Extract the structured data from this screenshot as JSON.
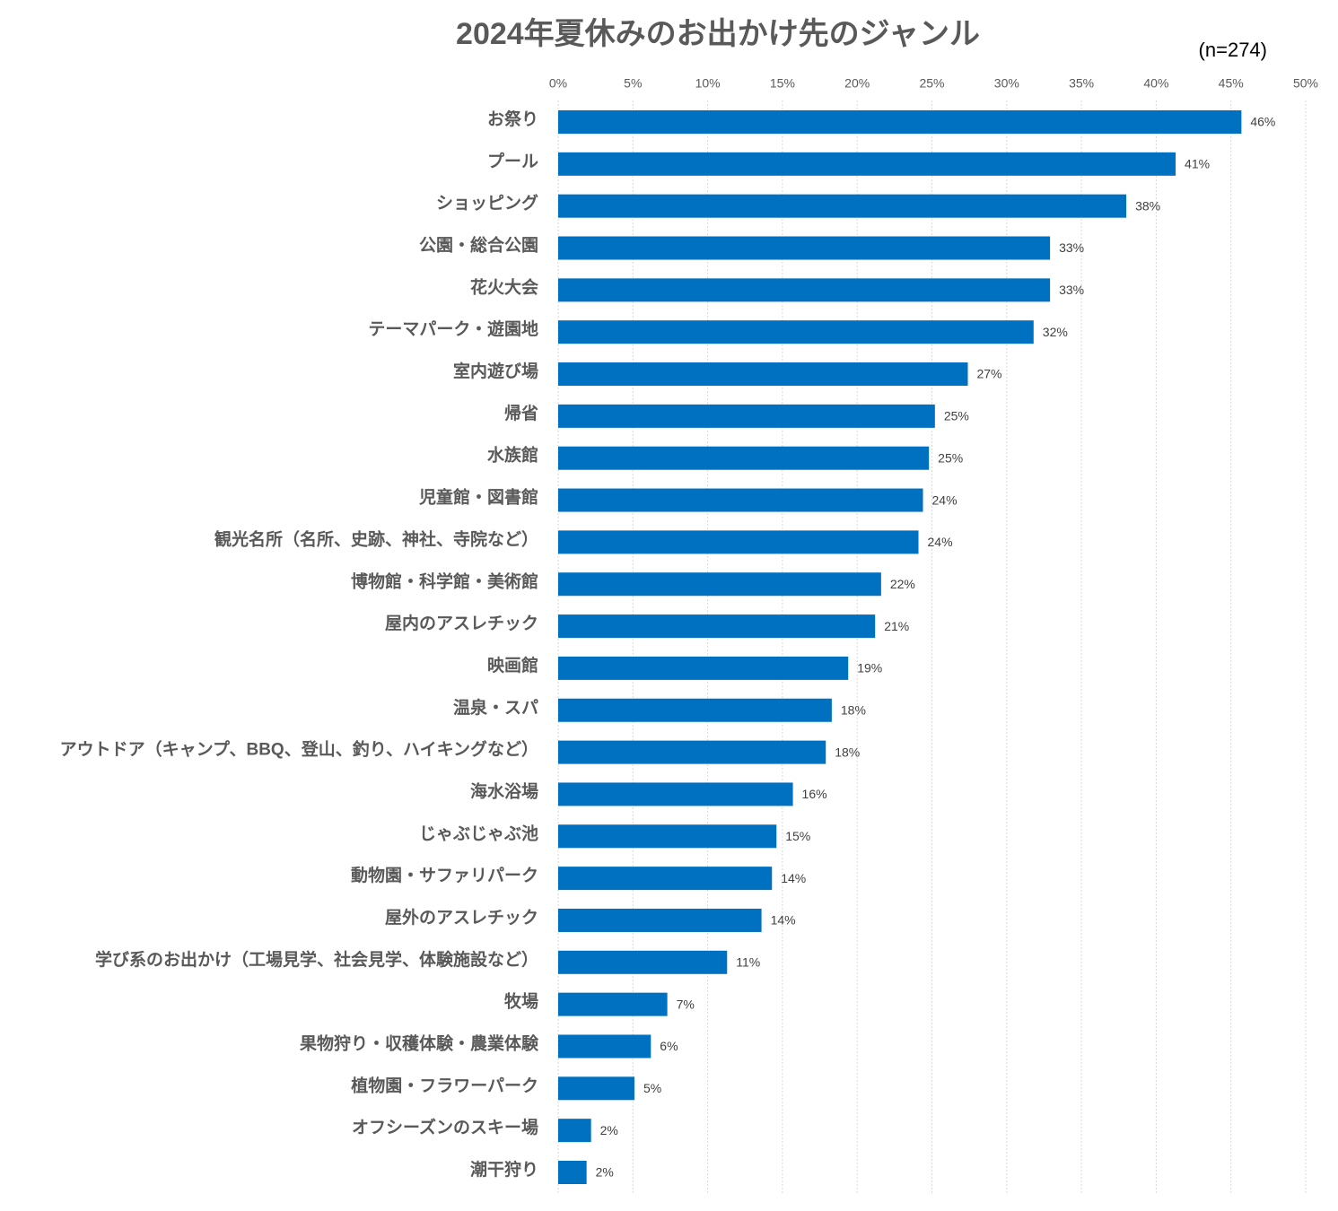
{
  "chart_data": {
    "type": "bar",
    "orientation": "horizontal",
    "title": "2024年夏休みのお出かけ先のジャンル",
    "subtitle": "(n=274)",
    "color": "#0070c0",
    "grid": true,
    "categories": [
      "お祭り",
      "プール",
      "ショッピング",
      "公園・総合公園",
      "花火大会",
      "テーマパーク・遊園地",
      "室内遊び場",
      "帰省",
      "水族館",
      "児童館・図書館",
      "観光名所（名所、史跡、神社、寺院など）",
      "博物館・科学館・美術館",
      "屋内のアスレチック",
      "映画館",
      "温泉・スパ",
      "アウトドア（キャンプ、BBQ、登山、釣り、ハイキングなど）",
      "海水浴場",
      "じゃぶじゃぶ池",
      "動物園・サファリパーク",
      "屋外のアスレチック",
      "学び系のお出かけ（工場見学、社会見学、体験施設など）",
      "牧場",
      "果物狩り・収穫体験・農業体験",
      "植物園・フラワーパーク",
      "オフシーズンのスキー場",
      "潮干狩り"
    ],
    "values": [
      45.7,
      41.3,
      38.0,
      32.9,
      32.9,
      31.8,
      27.4,
      25.2,
      24.8,
      24.4,
      24.1,
      21.6,
      21.2,
      19.4,
      18.3,
      17.9,
      15.7,
      14.6,
      14.3,
      13.6,
      11.3,
      7.3,
      6.2,
      5.1,
      2.2,
      1.9
    ],
    "value_labels": [
      "46%",
      "41%",
      "38%",
      "33%",
      "33%",
      "32%",
      "27%",
      "25%",
      "25%",
      "24%",
      "24%",
      "22%",
      "21%",
      "19%",
      "18%",
      "18%",
      "16%",
      "15%",
      "14%",
      "14%",
      "11%",
      "7%",
      "6%",
      "5%",
      "2%",
      "2%"
    ],
    "xlim": [
      0,
      50
    ],
    "xticks": [
      {
        "value": 0,
        "label": "0%"
      },
      {
        "value": 5,
        "label": "5%"
      },
      {
        "value": 10,
        "label": "10%"
      },
      {
        "value": 15,
        "label": "15%"
      },
      {
        "value": 20,
        "label": "20%"
      },
      {
        "value": 25,
        "label": "25%"
      },
      {
        "value": 30,
        "label": "30%"
      },
      {
        "value": 35,
        "label": "35%"
      },
      {
        "value": 40,
        "label": "40%"
      },
      {
        "value": 45,
        "label": "45%"
      },
      {
        "value": 50,
        "label": "50%"
      }
    ]
  }
}
